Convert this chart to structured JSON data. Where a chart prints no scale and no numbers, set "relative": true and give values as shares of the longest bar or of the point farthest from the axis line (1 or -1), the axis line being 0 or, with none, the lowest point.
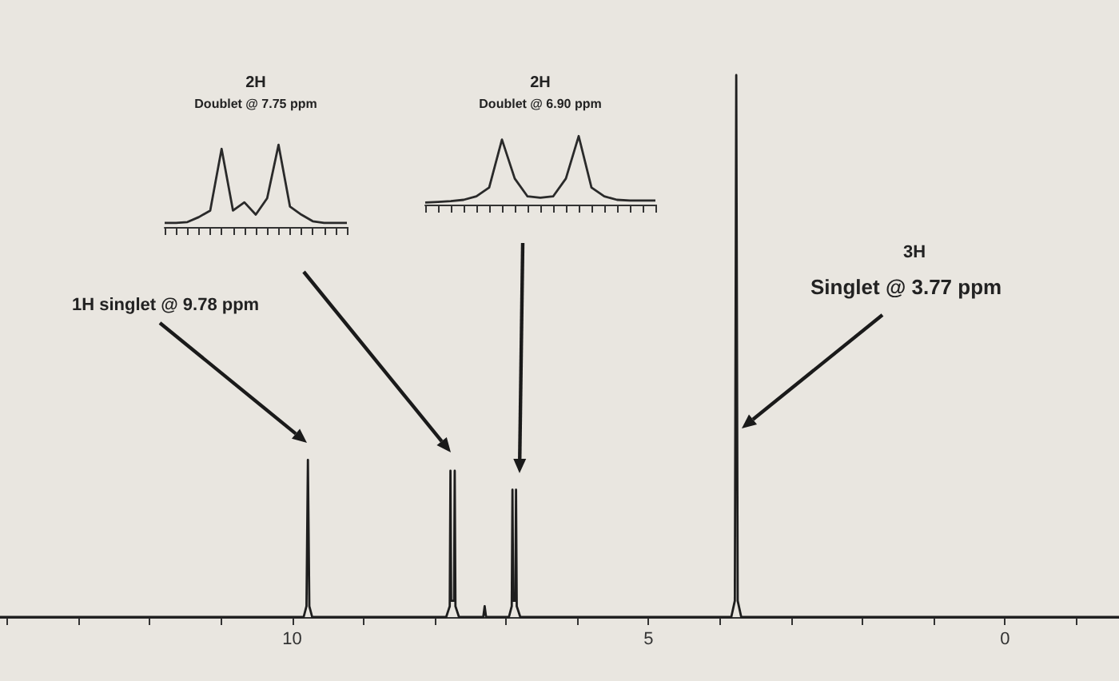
{
  "chart_data": [
    {
      "type": "line",
      "relative": true,
      "marker": "none",
      "xlim": [
        14.1,
        -1.6
      ],
      "xticks": [
        {
          "value": 14,
          "label": null
        },
        {
          "value": 13,
          "label": null
        },
        {
          "value": 12,
          "label": null
        },
        {
          "value": 11,
          "label": null
        },
        10,
        {
          "value": 9,
          "label": null
        },
        {
          "value": 8,
          "label": null
        },
        {
          "value": 7,
          "label": null
        },
        {
          "value": 6,
          "label": null
        },
        5,
        {
          "value": 4,
          "label": null
        },
        {
          "value": 3,
          "label": null
        },
        {
          "value": 2,
          "label": null
        },
        {
          "value": 1,
          "label": null
        },
        0,
        {
          "value": -1,
          "label": null
        }
      ],
      "series": [
        {
          "color": "#1e1e1e",
          "x": [
            14.1,
            9.84,
            9.8,
            9.78,
            9.76,
            9.72,
            7.84,
            7.79,
            7.78,
            7.77,
            7.73,
            7.72,
            7.71,
            7.66,
            7.32,
            7.3,
            7.28,
            6.96,
            6.92,
            6.91,
            6.9,
            6.87,
            6.86,
            6.85,
            6.8,
            3.84,
            3.79,
            3.77,
            3.75,
            3.7,
            -1.6
          ],
          "values": [
            0,
            0,
            0.02,
            0.29,
            0.02,
            0,
            0,
            0.02,
            0.27,
            0.03,
            0.03,
            0.27,
            0.02,
            0,
            0,
            0.02,
            0,
            0,
            0.02,
            0.235,
            0.03,
            0.03,
            0.235,
            0.02,
            0,
            0,
            0.03,
            1,
            0.03,
            0,
            0
          ]
        }
      ],
      "annotations": [
        "1H singlet @ 9.78 ppm",
        "3H",
        "Singlet @ 3.77 ppm"
      ]
    },
    {
      "type": "line",
      "relative": true,
      "marker": "none",
      "title": "2H",
      "subtitle": "Doublet @ 7.75 ppm",
      "categories": [
        null,
        null,
        null,
        null,
        null,
        null,
        null,
        null,
        null,
        null,
        null,
        null,
        null,
        null,
        null,
        null,
        null
      ],
      "series": [
        {
          "color": "#2a2a2a",
          "values": [
            0.05,
            0.05,
            0.06,
            0.12,
            0.2,
            0.95,
            0.2,
            0.3,
            0.15,
            0.35,
            1,
            0.25,
            0.15,
            0.07,
            0.05,
            0.05,
            0.05
          ]
        }
      ]
    },
    {
      "type": "line",
      "relative": true,
      "marker": "none",
      "title": "2H",
      "subtitle": "Doublet @ 6.90 ppm",
      "categories": [
        null,
        null,
        null,
        null,
        null,
        null,
        null,
        null,
        null,
        null,
        null,
        null,
        null,
        null,
        null,
        null,
        null,
        null,
        null
      ],
      "series": [
        {
          "color": "#2a2a2a",
          "values": [
            0.03,
            0.04,
            0.05,
            0.07,
            0.12,
            0.25,
            0.95,
            0.38,
            0.12,
            0.1,
            0.12,
            0.38,
            1,
            0.25,
            0.12,
            0.07,
            0.06,
            0.06,
            0.06
          ]
        }
      ]
    }
  ]
}
